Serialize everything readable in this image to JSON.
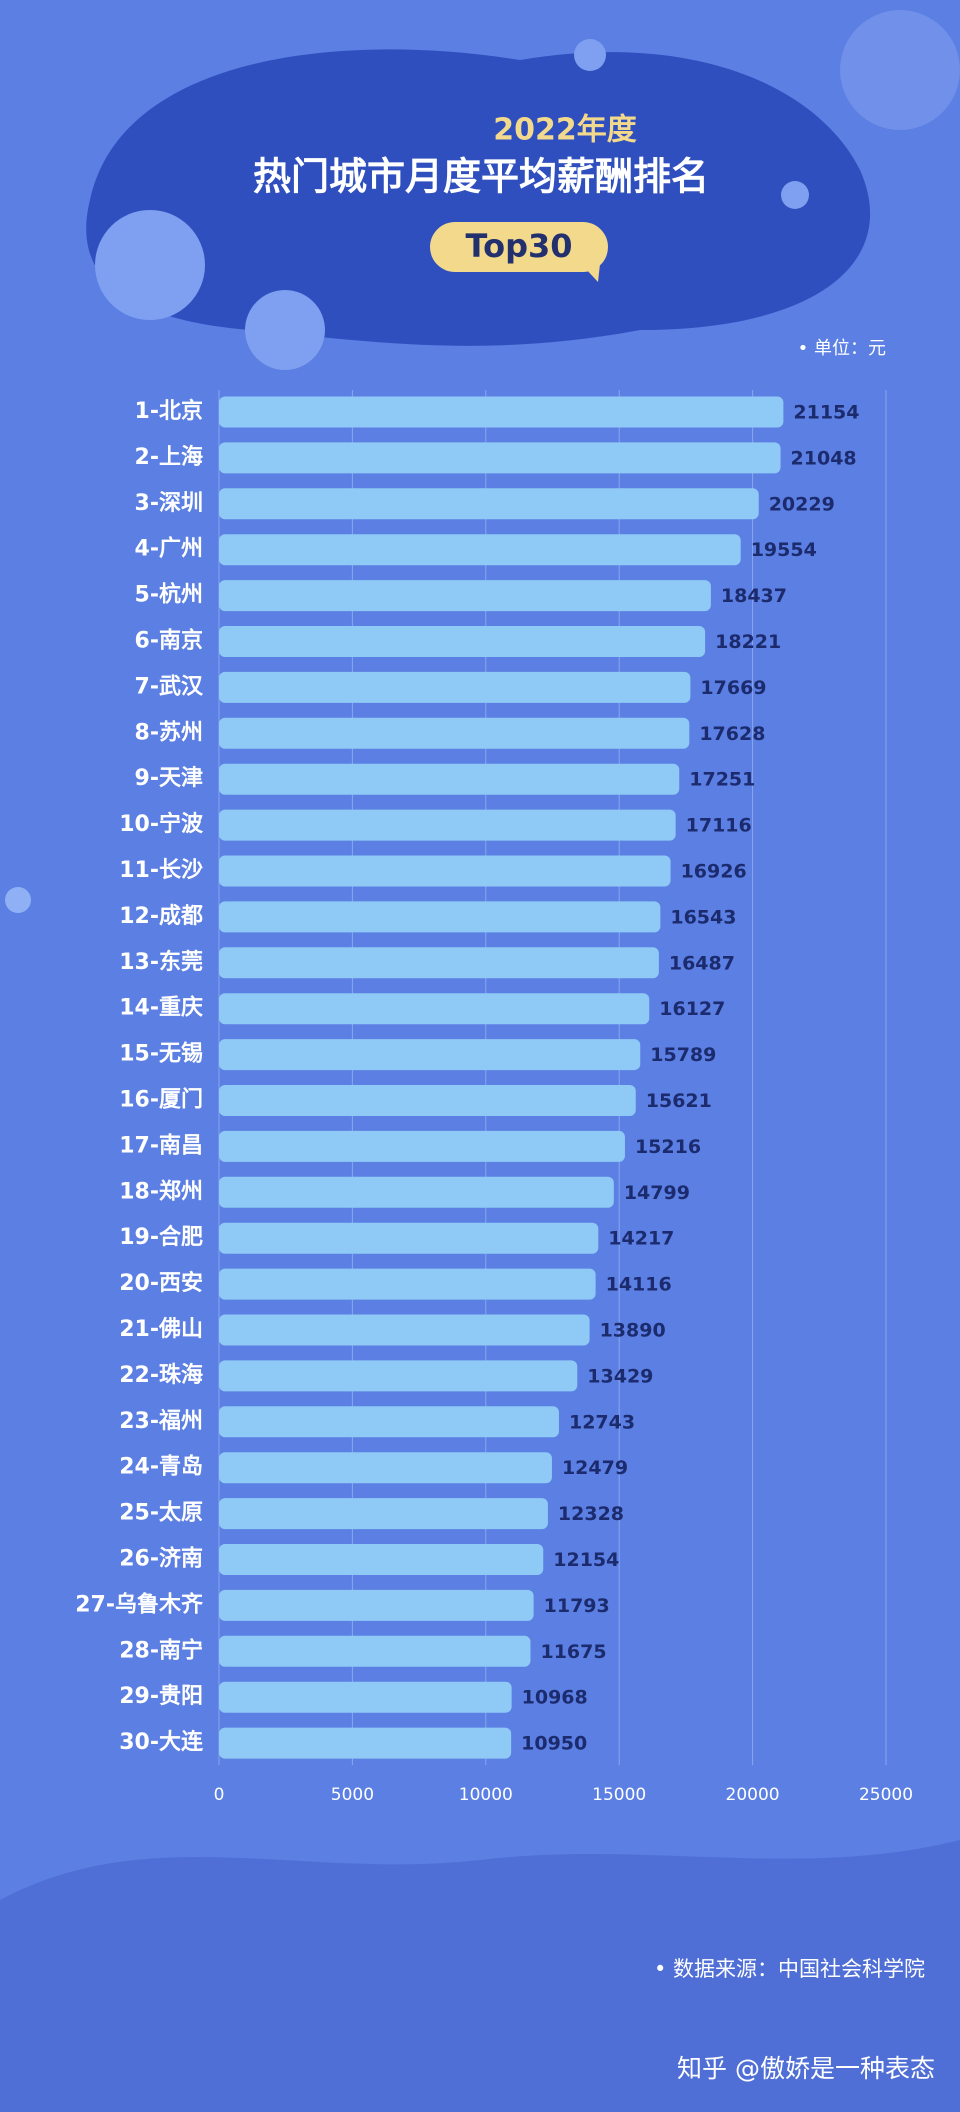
{
  "chart_data": {
    "type": "bar",
    "orientation": "horizontal",
    "supertitle": "2022年度",
    "title": "热门城市月度平均薪酬排名",
    "badge": "Top30",
    "unit": "• 单位：元",
    "source": "• 数据来源：中国社会科学院",
    "watermark": "知乎 @傲娇是一种表态",
    "categories": [
      "1-北京",
      "2-上海",
      "3-深圳",
      "4-广州",
      "5-杭州",
      "6-南京",
      "7-武汉",
      "8-苏州",
      "9-天津",
      "10-宁波",
      "11-长沙",
      "12-成都",
      "13-东莞",
      "14-重庆",
      "15-无锡",
      "16-厦门",
      "17-南昌",
      "18-郑州",
      "19-合肥",
      "20-西安",
      "21-佛山",
      "22-珠海",
      "23-福州",
      "24-青岛",
      "25-太原",
      "26-济南",
      "27-乌鲁木齐",
      "28-南宁",
      "29-贵阳",
      "30-大连"
    ],
    "values": [
      21154,
      21048,
      20229,
      19554,
      18437,
      18221,
      17669,
      17628,
      17251,
      17116,
      16926,
      16543,
      16487,
      16127,
      15789,
      15621,
      15216,
      14799,
      14217,
      14116,
      13890,
      13429,
      12743,
      12479,
      12328,
      12154,
      11793,
      11675,
      10968,
      10950
    ],
    "color": "#8fc9f6",
    "xlim": [
      0,
      25000
    ],
    "xticks": [
      0,
      5000,
      10000,
      15000,
      20000,
      25000
    ],
    "grid": true
  }
}
